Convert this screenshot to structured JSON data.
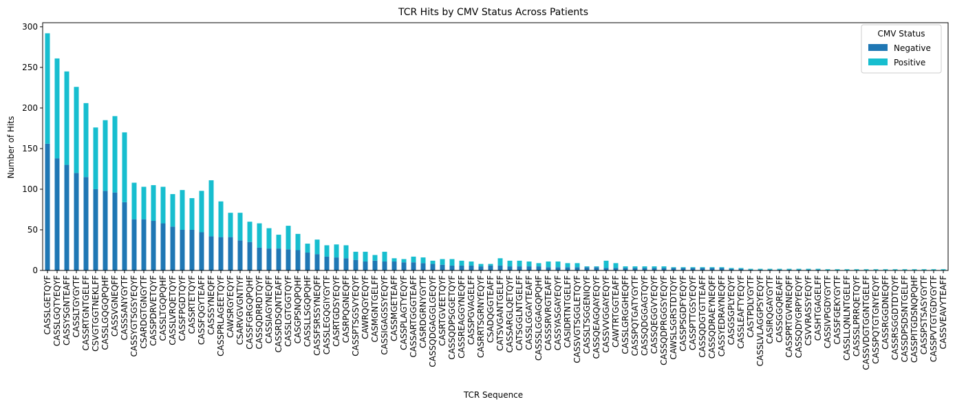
{
  "chart_data": {
    "type": "bar",
    "stacked": true,
    "title": "TCR Hits by CMV Status Across Patients",
    "xlabel": "TCR Sequence",
    "ylabel": "Number of Hits",
    "ylim": [
      0,
      305
    ],
    "yticks": [
      0,
      50,
      100,
      150,
      200,
      250,
      300
    ],
    "grid": false,
    "legend": {
      "title": "CMV Status",
      "placement": "top-right"
    },
    "categories": [
      "CASSLGETQYF",
      "CASSLGQTYEQYF",
      "CASSYSGNTEAFF",
      "CASSLTGYGYTF",
      "CASSRTGNTGELFF",
      "CSVGTGGTNEKLFF",
      "CASSLGQGQPQHF",
      "CASSVGNEQFF",
      "CASSSANYGYTF",
      "CASSYGTSGSYEQYF",
      "CSARDGTGNGYTF",
      "CASSPDRVETQYF",
      "CASSLTGQPQHF",
      "CASSLVRQETQYF",
      "CASSFPGDTQYF",
      "CASSRTETQYF",
      "CASSFQGYTEAFF",
      "CASSSYNEQFF",
      "CASSPRLAGEETQYF",
      "CAWSRGYEQYF",
      "CSARVGVGNTIYF",
      "CASSFGRGQPQHF",
      "CASSQDRRDTQYF",
      "CASSIAGYNEQFF",
      "CASSRDSQNTEAFF",
      "CASSLGTGGTQYF",
      "CASGPSNQPQHF",
      "CASSLLSGQPQHF",
      "CASSFSRSSYNEQFF",
      "CASSLEGQGIYGYTF",
      "CASRTGDSYEQYF",
      "CASRPQGNEQFF",
      "CASSPTSGSVYEQYF",
      "CAWRQGYEQYF",
      "CASMGNTGELFF",
      "CASSIGAGSSYEQYF",
      "CASSMGETEAFF",
      "CASSPLAGTYEQYF",
      "CASSARTGGGTEAFF",
      "CASRDGRNYGYTF",
      "CASSQDGAGGLGEQYF",
      "CASRTGVEETQYF",
      "CASSQDPSGGETQYF",
      "CASSREAGGYNEQFF",
      "CASSPGVAGELFF",
      "CASRRTSGRNYEQYF",
      "CSADQGGTEAFF",
      "CATSVGANTGELFF",
      "CASSARGLQETQYF",
      "CATSGGLNTGELFF",
      "CASSLGGAYTEAFF",
      "CASSSLGGAGQPQHF",
      "CASSSRVRGTEAFF",
      "CASSYASGAYEQYF",
      "CASIDRTNTGELFF",
      "CASSVGTSGGLETQYF",
      "CASSLTSGGENIQYF",
      "CASSQEAGQAYEQYF",
      "CASSVVGGAYEQYF",
      "CAWTRTGGTEAFF",
      "CASSLGRGGHEQFF",
      "CASSPQTGATYGYTF",
      "CASSQDGGAGTQYF",
      "CASSQEGGVYEQYF",
      "CASSQDPRGGSYEQYF",
      "CAWSLSGRSTDTQYF",
      "CASSPSGDFYEQYF",
      "CASSPTTGSYEQYF",
      "CASSQDGTGTTEAFF",
      "CASSQDRAEYNEQFF",
      "CASSYEDRAYNEQFF",
      "CASGSGPLYEQYF",
      "CASSLEAFTYEQYF",
      "CASTPDLYGYTF",
      "CASSLVLAGGPSYEQYF",
      "CASIRQGAYGYTF",
      "CASSGGQREAFF",
      "CASSPRTGVRNEQFF",
      "CASSQDYGRPYEQYF",
      "CSVVRASSYEQYF",
      "CASHTGAGELFF",
      "CASSIVPGDYGYTF",
      "CASSFGEKYGYTF",
      "CASSLLQNLNTGELFF",
      "CASSSLPRRQETQYF",
      "CASSVDGTGGNTGELFF",
      "CASSPQTGTGNYEQYF",
      "CASSRGGDNEQFF",
      "CASSRSGGDTDTQYF",
      "CASSDPSDSNTGELFF",
      "CASSPITGDSNQPQHF",
      "CASSPSTSASYGYTF",
      "CASSPVTGTGDYGYTF",
      "CASSVEAVYTEAFF"
    ],
    "series": [
      {
        "name": "Negative",
        "color": "#1f77b4",
        "values": [
          156,
          138,
          130,
          120,
          115,
          100,
          98,
          96,
          84,
          63,
          63,
          61,
          58,
          54,
          50,
          50,
          47,
          42,
          41,
          41,
          37,
          35,
          28,
          27,
          27,
          26,
          25,
          22,
          20,
          17,
          16,
          15,
          13,
          11,
          12,
          11,
          11,
          10,
          10,
          9,
          8,
          7,
          6,
          6,
          6,
          5,
          6,
          6,
          5,
          5,
          5,
          5,
          4,
          4,
          4,
          4,
          4,
          4,
          3,
          3,
          3,
          3,
          3,
          3,
          3,
          3,
          3,
          3,
          3,
          3,
          3,
          2,
          2,
          1,
          1,
          1,
          1,
          1,
          1,
          1,
          1,
          0.5,
          0.5,
          0.5,
          0.5,
          0.5,
          0.5,
          0.5,
          0.5,
          0.5,
          0.5,
          0.5,
          0.5,
          0.5
        ]
      },
      {
        "name": "Positive",
        "color": "#17becf",
        "values": [
          136,
          123,
          115,
          106,
          91,
          76,
          87,
          94,
          86,
          45,
          40,
          44,
          45,
          40,
          49,
          39,
          51,
          69,
          44,
          30,
          34,
          25,
          30,
          25,
          17,
          29,
          20,
          11,
          18,
          14,
          16,
          16,
          10,
          12,
          7,
          12,
          4,
          4,
          7,
          7,
          4,
          7,
          8,
          6,
          5,
          3,
          2,
          9,
          7,
          7,
          6,
          4,
          7,
          7,
          5,
          5,
          1,
          1,
          9,
          6,
          2,
          2,
          2,
          2,
          2,
          1,
          1,
          1,
          1,
          1,
          1,
          1,
          1,
          1,
          1,
          1,
          1,
          1,
          1,
          1,
          1,
          1,
          1,
          1,
          1,
          1,
          1,
          1,
          1,
          1,
          1,
          1,
          1,
          1
        ]
      }
    ]
  }
}
